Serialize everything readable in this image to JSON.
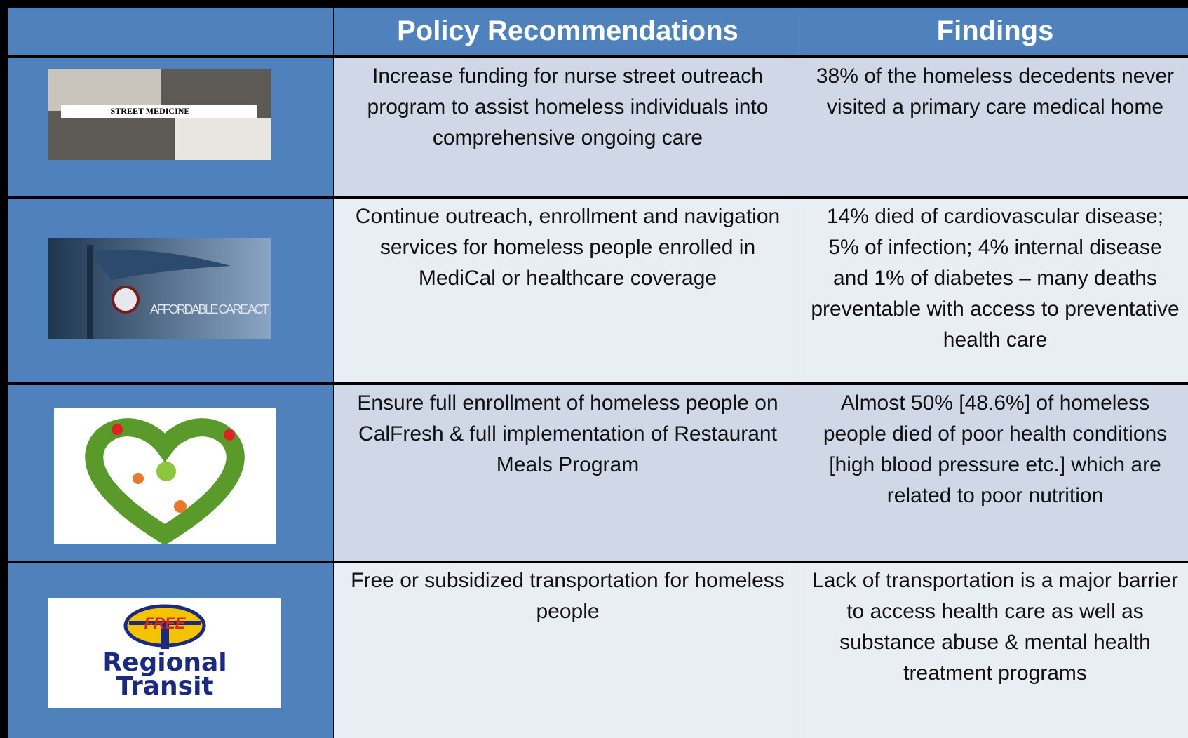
{
  "header": {
    "columns": [
      "Policy Recommendations",
      "Findings"
    ]
  },
  "rows": [
    {
      "image_label": "STREET MEDICINE",
      "recommendation": "Increase funding for nurse street outreach program to assist homeless individuals into comprehensive ongoing care",
      "finding": "38% of the homeless decedents never visited a primary care medical home"
    },
    {
      "image_label": "AFFORDABLE CARE ACT",
      "recommendation": "Continue outreach, enrollment and navigation services for homeless people enrolled in MediCal or healthcare coverage",
      "finding": "14% died of cardiovascular disease; 5% of infection; 4% internal disease and 1% of diabetes – many deaths preventable with access to preventative health care"
    },
    {
      "recommendation": "Ensure full enrollment of homeless people on CalFresh & full implementation of Restaurant Meals Program",
      "finding": "Almost 50% [48.6%] of homeless people died of  poor health conditions [high blood pressure etc.] which are related to poor nutrition"
    },
    {
      "image_badge": "FREE",
      "image_label": "Regional Transit",
      "recommendation": "Free or subsidized transportation for homeless people",
      "finding": "Lack of transportation is a major barrier to access health care as well as substance abuse & mental health treatment programs"
    }
  ]
}
